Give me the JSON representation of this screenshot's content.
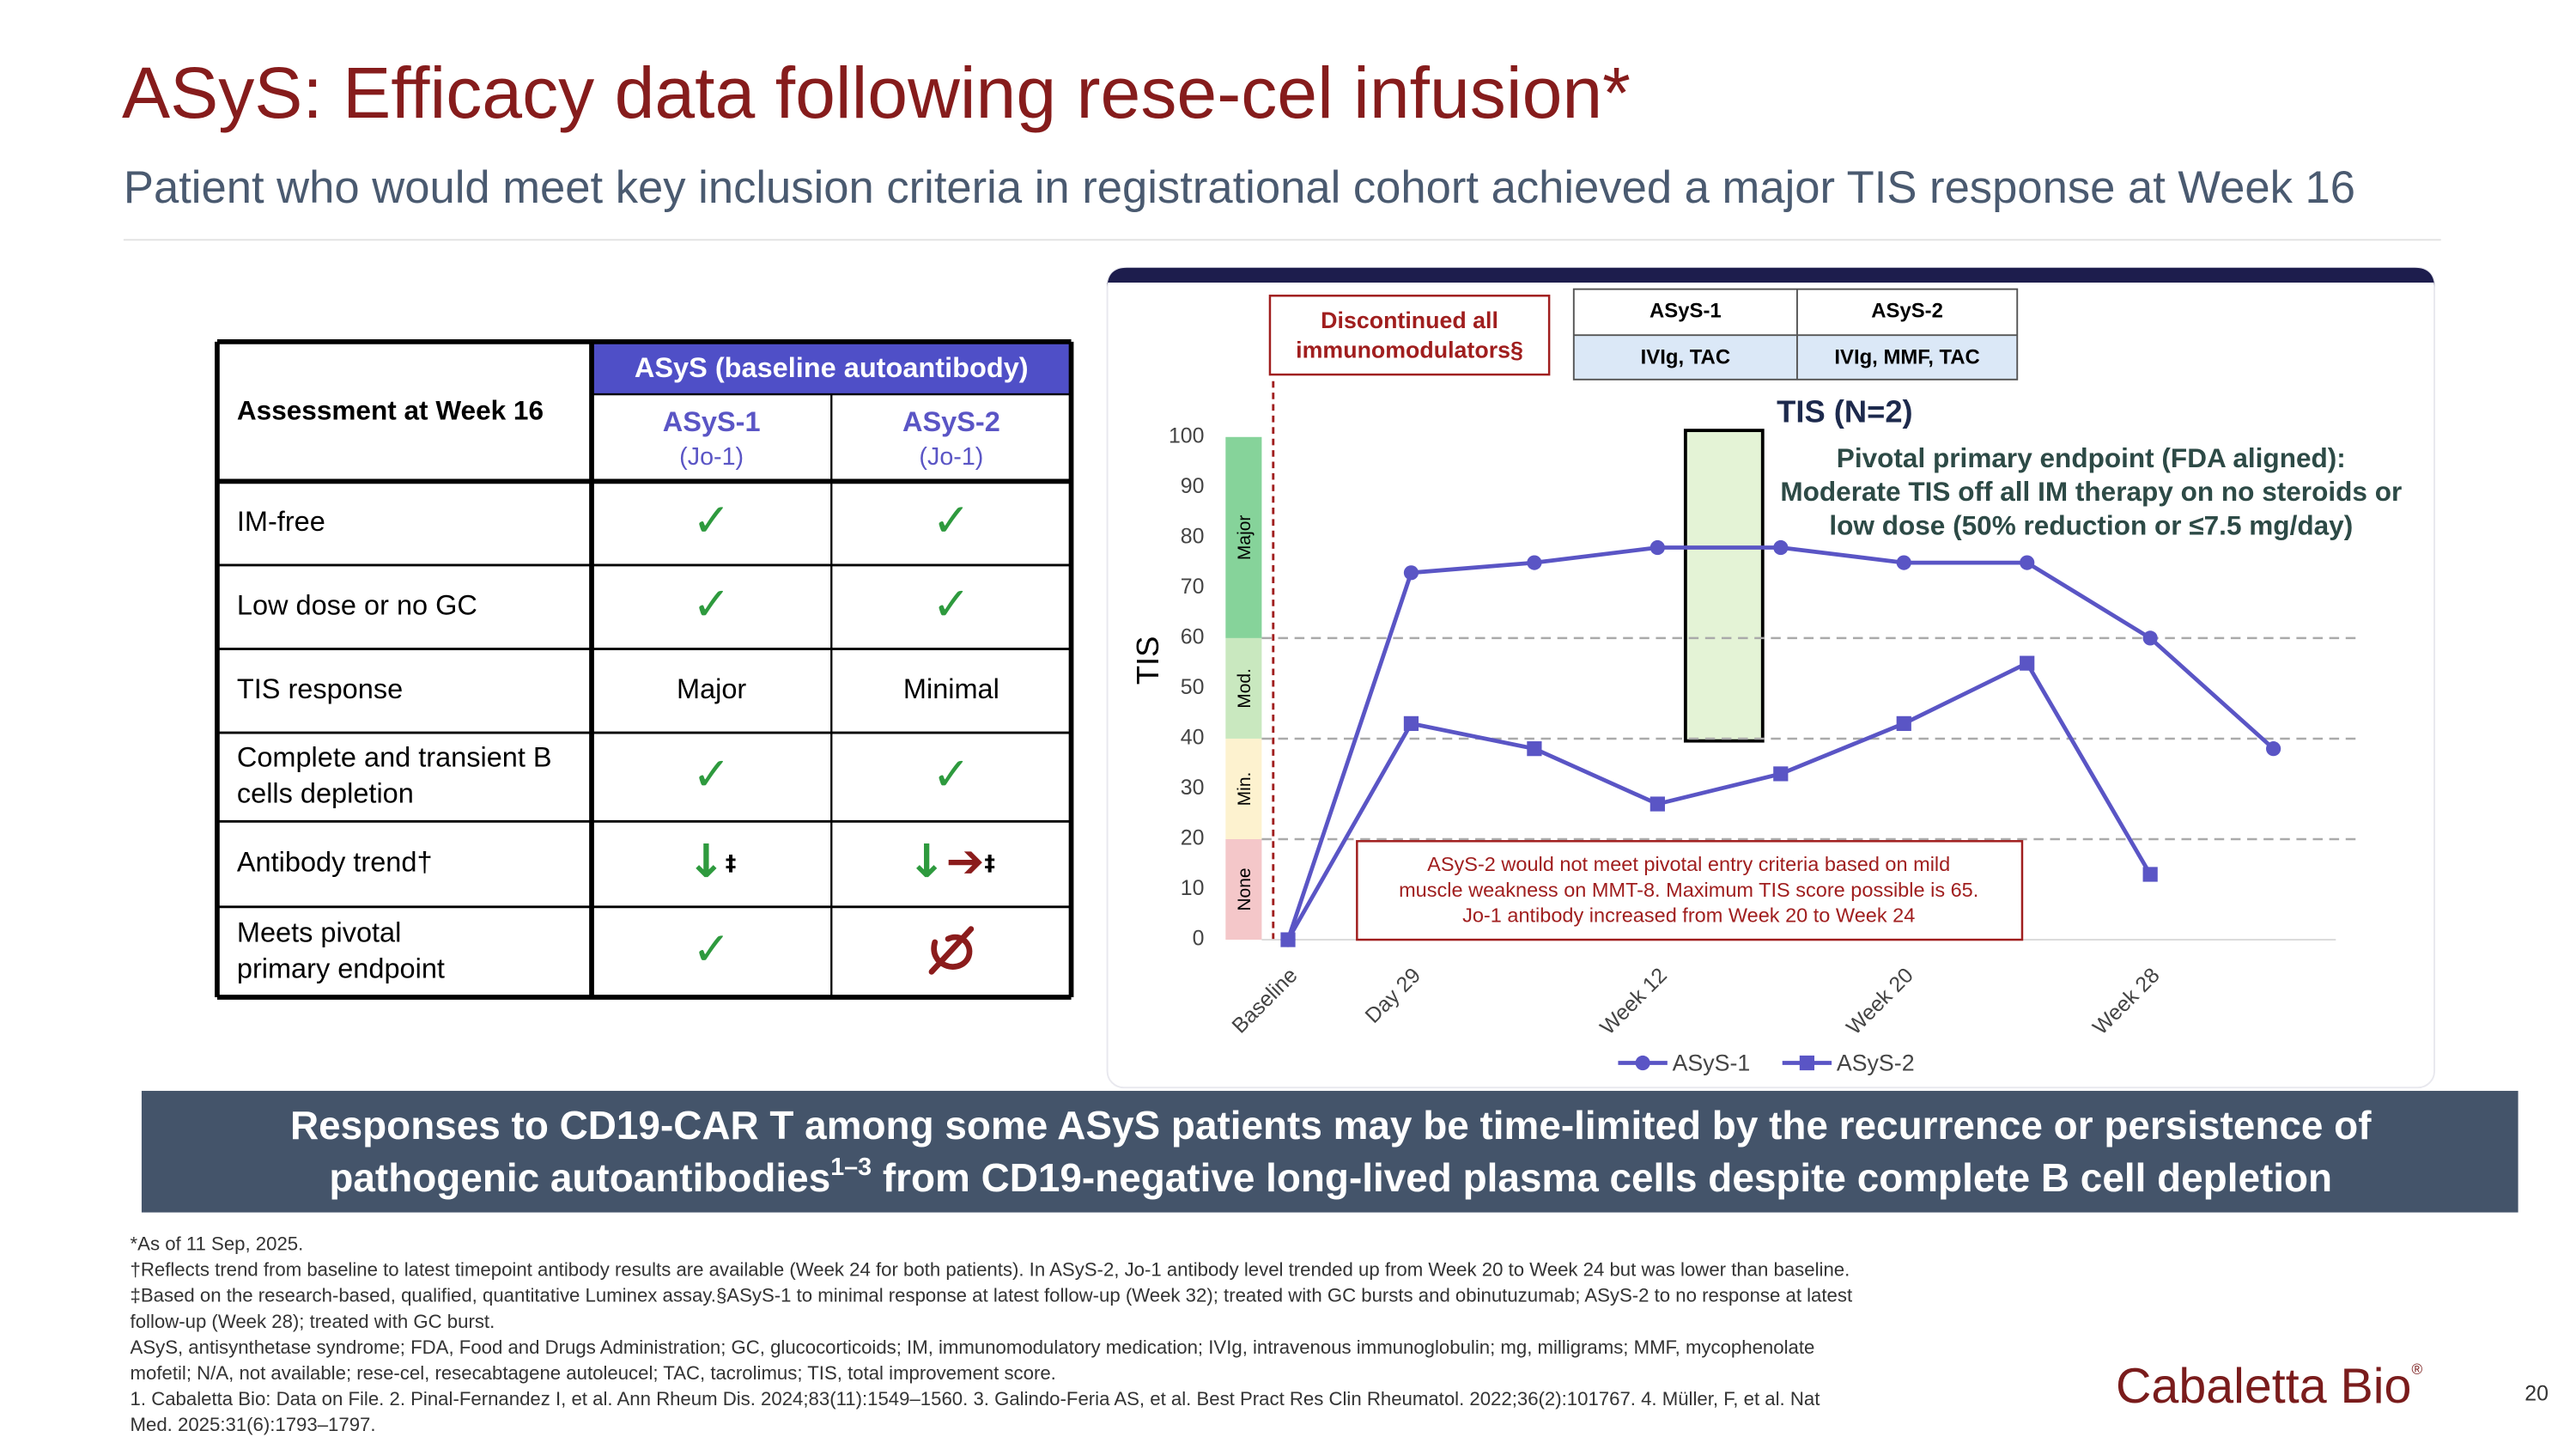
{
  "header": {
    "title": "ASyS: Efficacy data following rese-cel infusion*",
    "subtitle": "Patient who would meet key inclusion criteria in registrational cohort achieved a major TIS response at Week 16"
  },
  "table": {
    "corner": "Assessment at Week 16",
    "group": "ASyS (baseline autoantibody)",
    "columns": [
      {
        "name": "ASyS-1",
        "sub": "(Jo-1)"
      },
      {
        "name": "ASyS-2",
        "sub": "(Jo-1)"
      }
    ],
    "rows": [
      [
        "IM-free",
        "✓",
        "✓"
      ],
      [
        "Low dose or no GC",
        "✓",
        "✓"
      ],
      [
        "TIS response",
        "Major",
        "Minimal"
      ],
      [
        "Complete and transient B|cells depletion",
        "✓",
        "✓"
      ],
      [
        "Antibody trend†",
        "↓‡",
        "↓➔‡"
      ],
      [
        "Meets pivotal|primary endpoint",
        "✓",
        null
      ]
    ]
  },
  "chart_data": {
    "type": "line",
    "title": "TIS (N=2)",
    "y_label": "TIS",
    "categories": [
      "Baseline",
      "Day 29",
      null,
      "Week 12",
      null,
      "Week 20",
      null,
      "Week 28",
      null
    ],
    "series": [
      {
        "name": "ASyS-1",
        "color": "#5a55c5",
        "marker": "circle",
        "values": [
          0,
          73,
          75,
          78,
          78,
          75,
          75,
          60,
          38
        ]
      },
      {
        "name": "ASyS-2",
        "color": "#5a55c5",
        "marker": "square",
        "values": [
          0,
          43,
          38,
          27,
          33,
          43,
          55,
          13,
          null
        ]
      }
    ],
    "ylim": [
      0,
      100
    ],
    "yticks": [
      0,
      10,
      20,
      30,
      40,
      50,
      60,
      70,
      80,
      90,
      100
    ],
    "bands": [
      {
        "label": "None",
        "from": 0,
        "to": 20,
        "color": "#f4c7c9"
      },
      {
        "label": "Min.",
        "from": 20,
        "to": 40,
        "color": "#fdf2cf"
      },
      {
        "label": "Mod.",
        "from": 40,
        "to": 60,
        "color": "#c9e8bf"
      },
      {
        "label": "Major",
        "from": 60,
        "to": 100,
        "color": "#86d39a"
      }
    ],
    "legend": "bottom",
    "annotations": {
      "endpoint": [
        "Pivotal primary endpoint (FDA aligned):",
        "Moderate TIS off all IM therapy on no steroids or",
        "low dose (50% reduction or ≤7.5 mg/day)"
      ],
      "discontinued": [
        "Discontinued all",
        "immunomodulators§"
      ],
      "note": [
        "ASyS-2 would not meet pivotal entry criteria based on mild",
        "muscle weakness on MMT-8. Maximum TIS score possible is 65.",
        "Jo-1 antibody increased from Week 20 to Week 24"
      ],
      "therapy": [
        [
          "ASyS-1",
          "ASyS-2"
        ],
        [
          "IVIg, TAC",
          "IVIg, MMF, TAC"
        ]
      ]
    }
  },
  "banner": {
    "line1": "Responses to CD19-CAR T among some ASyS patients may be time-limited by the recurrence or persistence of",
    "line2a": "pathogenic autoantibodies",
    "sup": "1–3",
    "line2b": " from CD19-negative long-lived plasma cells despite complete B cell depletion"
  },
  "footnotes": [
    "*As of 11 Sep, 2025.",
    "†Reflects trend from baseline to latest timepoint antibody results are available (Week 24 for both patients). In ASyS-2, Jo-1 antibody level trended up from Week 20 to Week 24 but was lower than baseline.",
    "‡Based on the research-based, qualified, quantitative Luminex assay.§ASyS-1 to minimal response at latest follow-up (Week 32); treated with GC bursts and obinutuzumab; ASyS-2 to no response at latest",
    "follow-up (Week 28); treated with GC burst.",
    "ASyS, antisynthetase syndrome; FDA, Food and Drugs Administration; GC, glucocorticoids; IM, immunomodulatory medication; IVIg, intravenous immunoglobulin; mg, milligrams; MMF, mycophenolate",
    "mofetil; N/A, not available; rese-cel, resecabtagene autoleucel; TAC, tacrolimus; TIS, total improvement score.",
    "1. Cabaletta Bio: Data on File. 2. Pinal-Fernandez I, et al. Ann Rheum Dis. 2024;83(11):1549–1560. 3. Galindo-Feria AS, et al. Best Pract Res Clin Rheumatol. 2022;36(2):101767. 4. Müller, F, et al. Nat",
    "Med. 2025:31(6):1793–1797."
  ],
  "logo": {
    "name": "Cabaletta Bio",
    "mark": "®"
  },
  "page": "20"
}
